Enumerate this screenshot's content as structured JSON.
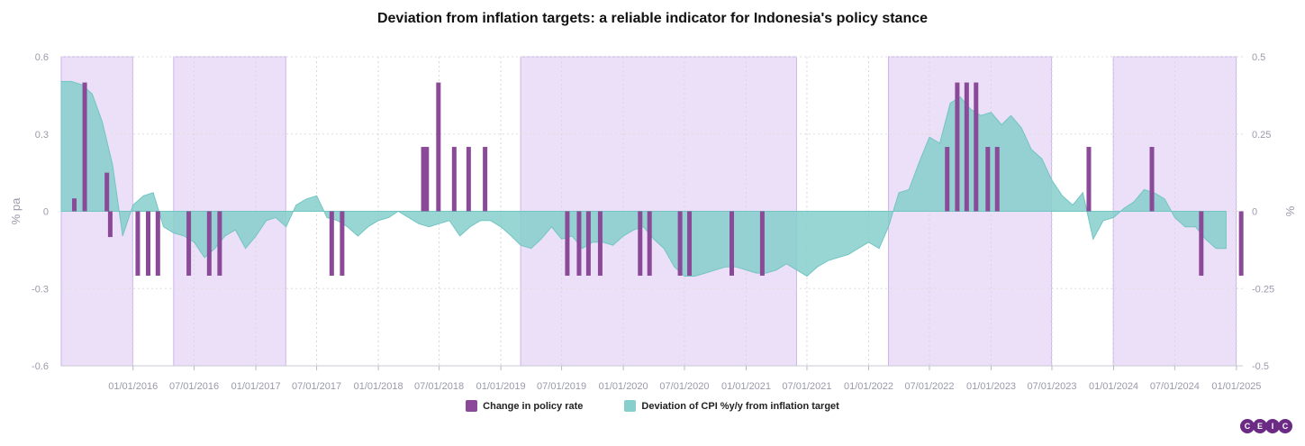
{
  "chart_data": {
    "type": "bar+area",
    "title": "Deviation from inflation targets: a reliable indicator for Indonesia's policy stance",
    "left_axis": {
      "label": "% pa",
      "ticks": [
        "0.6",
        "0.3",
        "0",
        "-0.3",
        "-0.6"
      ],
      "range": [
        -0.6,
        0.6
      ]
    },
    "right_axis": {
      "label": "%",
      "ticks": [
        "0.5",
        "0.25",
        "0",
        "-0.25",
        "-0.5"
      ],
      "range": [
        -0.5,
        0.5
      ]
    },
    "x_ticks": [
      "01/01/2016",
      "07/01/2016",
      "01/01/2017",
      "07/01/2017",
      "01/01/2018",
      "07/01/2018",
      "01/01/2019",
      "07/01/2019",
      "01/01/2020",
      "07/01/2020",
      "01/01/2021",
      "07/01/2021",
      "01/01/2022",
      "07/01/2022",
      "01/01/2023",
      "07/01/2023",
      "01/01/2024",
      "07/01/2024",
      "01/01/2025"
    ],
    "shaded_periods": [
      [
        "2015-06-01",
        "2015-12-31"
      ],
      [
        "2016-05-01",
        "2017-03-31"
      ],
      [
        "2019-03-01",
        "2021-05-31"
      ],
      [
        "2022-03-01",
        "2023-06-30"
      ],
      [
        "2023-12-31",
        "2024-12-31"
      ]
    ],
    "legend": [
      {
        "name": "Change in policy rate",
        "color": "#8a4a97"
      },
      {
        "name": "Deviation of CPI %y/y from inflation target",
        "color": "#86cfcc"
      }
    ],
    "series": [
      {
        "name": "Change in policy rate",
        "axis": "left",
        "points": [
          [
            "2015-07-10",
            0.05
          ],
          [
            "2015-08-10",
            0.5
          ],
          [
            "2015-10-15",
            0.15
          ],
          [
            "2015-10-25",
            -0.1
          ],
          [
            "2016-01-15",
            -0.25
          ],
          [
            "2016-02-15",
            -0.25
          ],
          [
            "2016-03-15",
            -0.25
          ],
          [
            "2016-06-15",
            -0.25
          ],
          [
            "2016-08-15",
            -0.25
          ],
          [
            "2016-09-15",
            -0.25
          ],
          [
            "2017-08-15",
            -0.25
          ],
          [
            "2017-09-15",
            -0.25
          ],
          [
            "2018-05-15",
            0.25
          ],
          [
            "2018-05-25",
            0.25
          ],
          [
            "2018-06-29",
            0.5
          ],
          [
            "2018-08-15",
            0.25
          ],
          [
            "2018-09-27",
            0.25
          ],
          [
            "2018-11-15",
            0.25
          ],
          [
            "2019-07-18",
            -0.25
          ],
          [
            "2019-08-22",
            -0.25
          ],
          [
            "2019-09-19",
            -0.25
          ],
          [
            "2019-10-24",
            -0.25
          ],
          [
            "2020-02-20",
            -0.25
          ],
          [
            "2020-03-19",
            -0.25
          ],
          [
            "2020-06-18",
            -0.25
          ],
          [
            "2020-07-16",
            -0.25
          ],
          [
            "2020-11-19",
            -0.25
          ],
          [
            "2021-02-18",
            -0.25
          ],
          [
            "2022-08-23",
            0.25
          ],
          [
            "2022-09-22",
            0.5
          ],
          [
            "2022-10-20",
            0.5
          ],
          [
            "2022-11-17",
            0.5
          ],
          [
            "2022-12-22",
            0.25
          ],
          [
            "2023-01-19",
            0.25
          ],
          [
            "2023-10-19",
            0.25
          ],
          [
            "2024-04-24",
            0.25
          ],
          [
            "2024-09-18",
            -0.25
          ],
          [
            "2025-01-15",
            -0.25
          ]
        ]
      },
      {
        "name": "Deviation of CPI %y/y from inflation target",
        "axis": "right",
        "points": [
          [
            "2015-06-01",
            0.42
          ],
          [
            "2015-07-01",
            0.42
          ],
          [
            "2015-08-01",
            0.41
          ],
          [
            "2015-09-01",
            0.38
          ],
          [
            "2015-10-01",
            0.29
          ],
          [
            "2015-11-01",
            0.15
          ],
          [
            "2015-12-01",
            -0.08
          ],
          [
            "2016-01-01",
            0.02
          ],
          [
            "2016-02-01",
            0.05
          ],
          [
            "2016-03-01",
            0.06
          ],
          [
            "2016-04-01",
            -0.05
          ],
          [
            "2016-05-01",
            -0.07
          ],
          [
            "2016-06-01",
            -0.08
          ],
          [
            "2016-07-01",
            -0.1
          ],
          [
            "2016-08-01",
            -0.15
          ],
          [
            "2016-09-01",
            -0.12
          ],
          [
            "2016-10-01",
            -0.08
          ],
          [
            "2016-11-01",
            -0.06
          ],
          [
            "2016-12-01",
            -0.12
          ],
          [
            "2017-01-01",
            -0.08
          ],
          [
            "2017-02-01",
            -0.03
          ],
          [
            "2017-03-01",
            -0.02
          ],
          [
            "2017-04-01",
            -0.05
          ],
          [
            "2017-05-01",
            0.02
          ],
          [
            "2017-06-01",
            0.04
          ],
          [
            "2017-07-01",
            0.05
          ],
          [
            "2017-08-01",
            -0.02
          ],
          [
            "2017-09-01",
            -0.03
          ],
          [
            "2017-10-01",
            -0.05
          ],
          [
            "2017-11-01",
            -0.08
          ],
          [
            "2017-12-01",
            -0.05
          ],
          [
            "2018-01-01",
            -0.03
          ],
          [
            "2018-02-01",
            -0.02
          ],
          [
            "2018-03-01",
            0.0
          ],
          [
            "2018-04-01",
            -0.02
          ],
          [
            "2018-05-01",
            -0.04
          ],
          [
            "2018-06-01",
            -0.05
          ],
          [
            "2018-07-01",
            -0.04
          ],
          [
            "2018-08-01",
            -0.03
          ],
          [
            "2018-09-01",
            -0.08
          ],
          [
            "2018-10-01",
            -0.05
          ],
          [
            "2018-11-01",
            -0.03
          ],
          [
            "2018-12-01",
            -0.03
          ],
          [
            "2019-01-01",
            -0.05
          ],
          [
            "2019-02-01",
            -0.08
          ],
          [
            "2019-03-01",
            -0.11
          ],
          [
            "2019-04-01",
            -0.12
          ],
          [
            "2019-05-01",
            -0.09
          ],
          [
            "2019-06-01",
            -0.05
          ],
          [
            "2019-07-01",
            -0.09
          ],
          [
            "2019-08-01",
            -0.08
          ],
          [
            "2019-09-01",
            -0.12
          ],
          [
            "2019-10-01",
            -0.1
          ],
          [
            "2019-11-01",
            -0.1
          ],
          [
            "2019-12-01",
            -0.11
          ],
          [
            "2020-01-01",
            -0.08
          ],
          [
            "2020-02-01",
            -0.06
          ],
          [
            "2020-03-01",
            -0.05
          ],
          [
            "2020-04-01",
            -0.09
          ],
          [
            "2020-05-01",
            -0.12
          ],
          [
            "2020-06-01",
            -0.18
          ],
          [
            "2020-07-01",
            -0.21
          ],
          [
            "2020-08-01",
            -0.21
          ],
          [
            "2020-09-01",
            -0.2
          ],
          [
            "2020-10-01",
            -0.19
          ],
          [
            "2020-11-01",
            -0.18
          ],
          [
            "2020-12-01",
            -0.18
          ],
          [
            "2021-01-01",
            -0.19
          ],
          [
            "2021-02-01",
            -0.2
          ],
          [
            "2021-03-01",
            -0.2
          ],
          [
            "2021-04-01",
            -0.19
          ],
          [
            "2021-05-01",
            -0.17
          ],
          [
            "2021-06-01",
            -0.19
          ],
          [
            "2021-07-01",
            -0.21
          ],
          [
            "2021-08-01",
            -0.18
          ],
          [
            "2021-09-01",
            -0.16
          ],
          [
            "2021-10-01",
            -0.15
          ],
          [
            "2021-11-01",
            -0.14
          ],
          [
            "2021-12-01",
            -0.12
          ],
          [
            "2022-01-01",
            -0.1
          ],
          [
            "2022-02-01",
            -0.12
          ],
          [
            "2022-03-01",
            -0.05
          ],
          [
            "2022-04-01",
            0.06
          ],
          [
            "2022-05-01",
            0.07
          ],
          [
            "2022-06-01",
            0.16
          ],
          [
            "2022-07-01",
            0.24
          ],
          [
            "2022-08-01",
            0.22
          ],
          [
            "2022-09-01",
            0.35
          ],
          [
            "2022-10-01",
            0.37
          ],
          [
            "2022-11-01",
            0.33
          ],
          [
            "2022-12-01",
            0.31
          ],
          [
            "2023-01-01",
            0.32
          ],
          [
            "2023-02-01",
            0.28
          ],
          [
            "2023-03-01",
            0.31
          ],
          [
            "2023-04-01",
            0.27
          ],
          [
            "2023-05-01",
            0.2
          ],
          [
            "2023-06-01",
            0.17
          ],
          [
            "2023-07-01",
            0.1
          ],
          [
            "2023-08-01",
            0.05
          ],
          [
            "2023-09-01",
            0.02
          ],
          [
            "2023-10-01",
            0.06
          ],
          [
            "2023-11-01",
            -0.09
          ],
          [
            "2023-12-01",
            -0.03
          ],
          [
            "2024-01-01",
            -0.02
          ],
          [
            "2024-02-01",
            0.01
          ],
          [
            "2024-03-01",
            0.03
          ],
          [
            "2024-04-01",
            0.07
          ],
          [
            "2024-05-01",
            0.06
          ],
          [
            "2024-06-01",
            0.04
          ],
          [
            "2024-07-01",
            -0.02
          ],
          [
            "2024-08-01",
            -0.05
          ],
          [
            "2024-09-01",
            -0.05
          ],
          [
            "2024-10-01",
            -0.09
          ],
          [
            "2024-11-01",
            -0.12
          ],
          [
            "2024-12-01",
            -0.12
          ]
        ]
      }
    ]
  }
}
